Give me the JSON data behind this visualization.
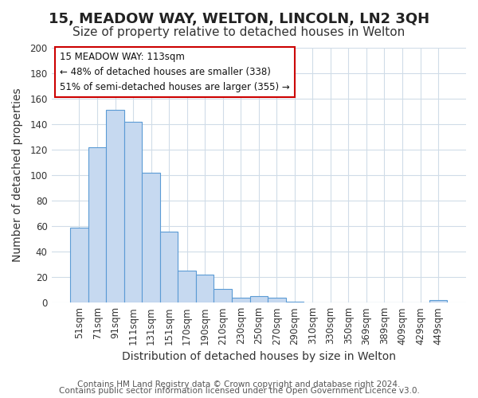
{
  "title": "15, MEADOW WAY, WELTON, LINCOLN, LN2 3QH",
  "subtitle": "Size of property relative to detached houses in Welton",
  "xlabel": "Distribution of detached houses by size in Welton",
  "ylabel": "Number of detached properties",
  "bar_labels": [
    "51sqm",
    "71sqm",
    "91sqm",
    "111sqm",
    "131sqm",
    "151sqm",
    "170sqm",
    "190sqm",
    "210sqm",
    "230sqm",
    "250sqm",
    "270sqm",
    "290sqm",
    "310sqm",
    "330sqm",
    "350sqm",
    "369sqm",
    "389sqm",
    "409sqm",
    "429sqm",
    "449sqm"
  ],
  "bar_heights": [
    59,
    122,
    151,
    142,
    102,
    56,
    25,
    22,
    11,
    4,
    5,
    4,
    1,
    0,
    0,
    0,
    0,
    0,
    0,
    0,
    2
  ],
  "bar_color": "#c6d9f0",
  "bar_edge_color": "#5b9bd5",
  "ylim": [
    0,
    200
  ],
  "yticks": [
    0,
    20,
    40,
    60,
    80,
    100,
    120,
    140,
    160,
    180,
    200
  ],
  "annotation_title": "15 MEADOW WAY: 113sqm",
  "annotation_line1": "← 48% of detached houses are smaller (338)",
  "annotation_line2": "51% of semi-detached houses are larger (355) →",
  "annotation_box_color": "#ffffff",
  "annotation_box_edge": "#cc0000",
  "footer_line1": "Contains HM Land Registry data © Crown copyright and database right 2024.",
  "footer_line2": "Contains public sector information licensed under the Open Government Licence v3.0.",
  "background_color": "#ffffff",
  "grid_color": "#d0dce8",
  "title_fontsize": 13,
  "subtitle_fontsize": 11,
  "axis_label_fontsize": 10,
  "tick_fontsize": 8.5,
  "footer_fontsize": 7.5
}
